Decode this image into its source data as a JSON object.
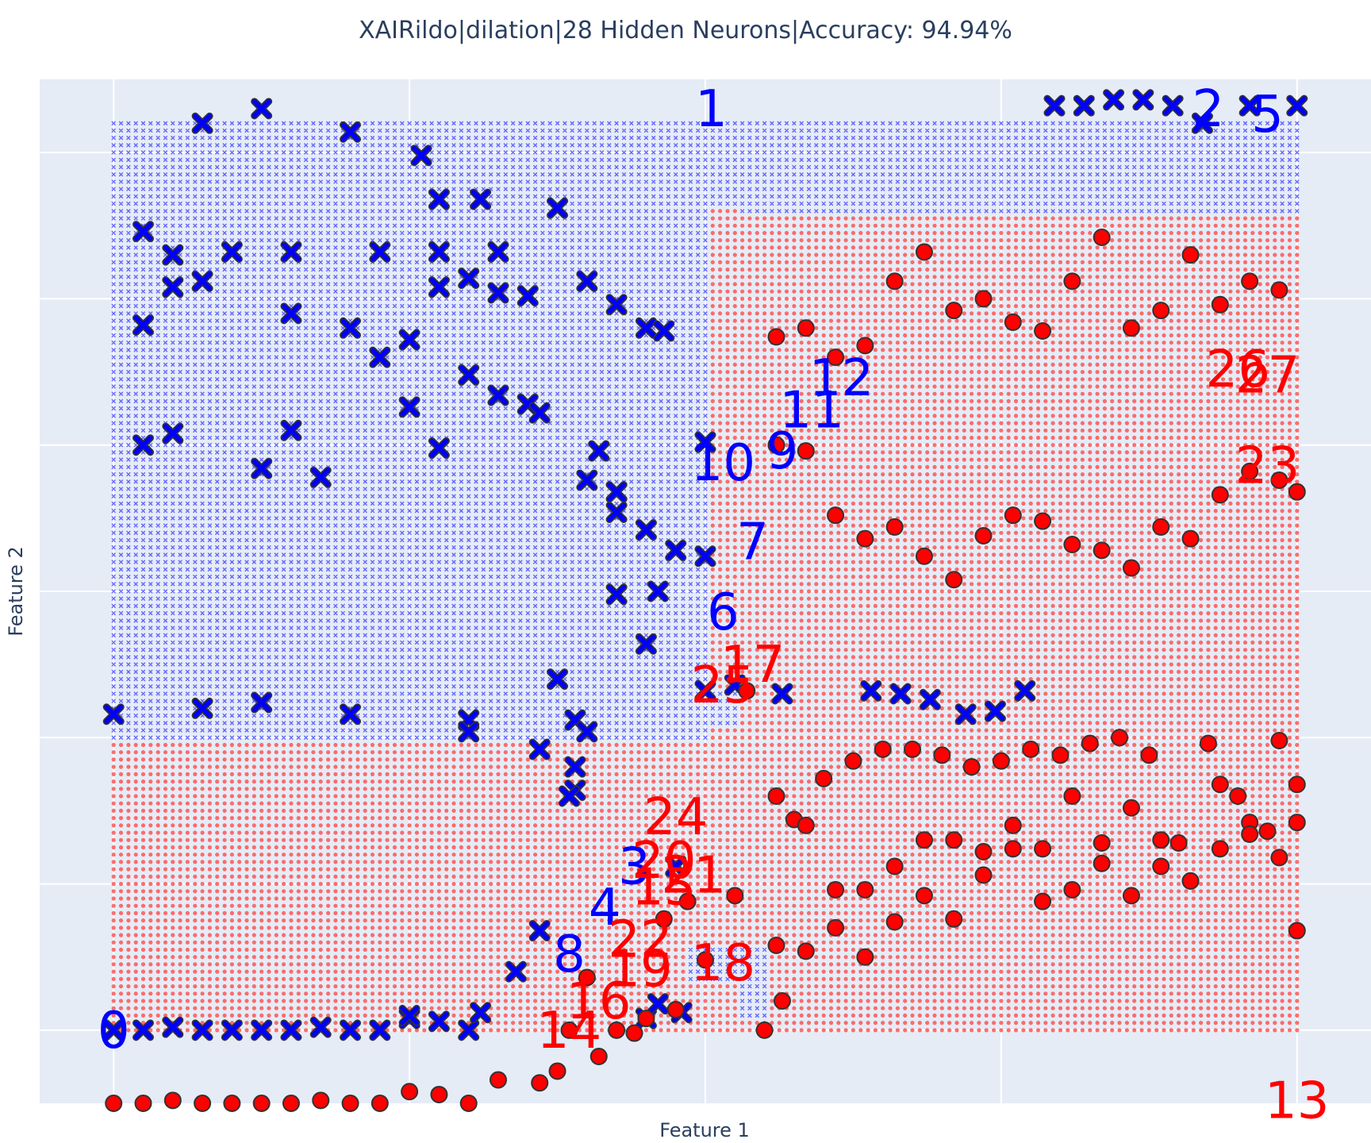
{
  "chart_data": {
    "type": "scatter",
    "title": "XAIRildo|dilation|28 Hidden Neurons|Accuracy: 94.94%",
    "xlabel": "Feature 1",
    "ylabel": "Feature 2",
    "xlim": [
      -0.125,
      2.125
    ],
    "ylim": [
      -0.125,
      1.625
    ],
    "grid": true,
    "legend": "none",
    "colors": {
      "blue": "#0000ff",
      "red": "#ff0000",
      "plot_bg": "#e5ecf6",
      "grid": "#ffffff"
    },
    "regions": {
      "grid_x": [
        0,
        2,
        0.05
      ],
      "grid_y": [
        0,
        1.55,
        0.0125
      ],
      "blue_rects": [
        [
          0,
          1.01,
          0.5,
          1.55
        ],
        [
          1.01,
          2,
          1.395,
          1.55
        ],
        [
          0,
          0.97,
          0.495,
          0.53
        ],
        [
          1.05,
          1.075,
          0.79,
          0.93
        ],
        [
          0.97,
          1.075,
          0.52,
          0.575
        ],
        [
          0.97,
          1.1,
          0.04,
          0.14
        ],
        [
          1.025,
          1.1,
          0.05,
          0.02
        ],
        [
          1.9,
          1.92,
          1.185,
          1.23
        ]
      ],
      "red_rects": [
        [
          1.05,
          2,
          0.5,
          1.22
        ],
        [
          1.07,
          2,
          1.22,
          1.25
        ],
        [
          1.1,
          2,
          1.25,
          1.275
        ],
        [
          1.22,
          2,
          1.275,
          1.33
        ],
        [
          0,
          1.07,
          -0.08,
          0.02
        ],
        [
          0.97,
          1.05,
          0.02,
          0.08
        ],
        [
          0,
          0.97,
          0.49,
          0.41
        ],
        [
          0,
          0.97,
          0.355,
          0.38
        ],
        [
          0,
          0.97,
          0.34,
          0.315
        ],
        [
          0,
          0.97,
          0.215,
          0.22
        ],
        [
          0,
          0.97,
          0.08,
          0.11
        ],
        [
          0.97,
          1.1,
          0.14,
          0.23
        ],
        [
          0.97,
          1.1,
          0.28,
          0.4
        ],
        [
          1.01,
          1.05,
          1.31,
          1.4
        ]
      ]
    },
    "series": [
      {
        "marker": "x",
        "color": "#0000ff",
        "x": [
          0,
          0.05,
          0.1,
          0.15,
          0.2,
          0.25,
          0.3,
          0.35,
          0.4,
          0.45,
          0.5,
          0.55,
          0.6,
          0.5,
          0.55,
          0.6,
          0.65,
          0.7,
          0.8,
          0.85,
          0.9,
          0.93,
          0.9,
          0.92,
          0.96,
          1.0,
          0.6,
          0.75,
          0.78,
          0.25,
          0.15,
          0.4,
          0.52,
          0.62,
          0.55,
          0.75,
          0.05,
          0.1,
          0.15,
          0.3,
          0.4,
          0.45,
          0.5,
          0.6,
          0.7,
          0.85,
          0.05,
          0.1,
          0.2,
          0.3,
          0.45,
          0.55,
          0.65,
          0.95,
          0.05,
          0.1,
          0.25,
          0.3,
          0.35,
          0.5,
          0.55,
          0.65,
          0.72,
          0.82,
          0.85,
          0.8,
          0.85,
          0.9,
          0.95,
          1.0,
          0.0,
          0.15,
          0.25,
          0.4,
          0.6,
          0.72,
          0.78,
          0.9,
          0.92,
          1.0,
          1.05,
          1.13,
          1.28,
          1.33,
          1.38,
          1.44,
          1.49,
          1.54,
          1.59,
          1.64,
          1.69,
          1.74,
          1.79,
          1.84,
          1.92,
          2.0,
          0.85,
          0.8,
          0.78,
          0.77,
          0.72,
          0.68,
          0.62
        ],
        "y": [
          0.0,
          0.0,
          0.005,
          0.0,
          0.0,
          0.0,
          0.0,
          0.005,
          0.0,
          0.0,
          0.02,
          0.015,
          0.0,
          0.025,
          1.27,
          1.285,
          1.26,
          1.255,
          1.28,
          1.24,
          1.2,
          1.195,
          0.02,
          0.045,
          0.03,
          1.005,
          0.53,
          0.6,
          0.53,
          1.575,
          1.55,
          1.535,
          1.495,
          1.42,
          1.42,
          1.405,
          1.365,
          1.325,
          1.28,
          1.225,
          1.2,
          1.15,
          1.18,
          1.12,
          1.07,
          0.885,
          1.205,
          1.27,
          1.33,
          1.33,
          1.33,
          1.33,
          1.33,
          0.28,
          1.0,
          1.02,
          0.96,
          1.025,
          0.945,
          1.065,
          0.995,
          1.085,
          1.055,
          0.99,
          0.92,
          0.94,
          0.92,
          0.855,
          0.82,
          0.81,
          0.54,
          0.55,
          0.56,
          0.54,
          0.51,
          0.48,
          0.41,
          0.66,
          0.75,
          0.58,
          0.59,
          0.575,
          0.58,
          0.575,
          0.565,
          0.54,
          0.545,
          0.58,
          1.58,
          1.58,
          1.59,
          1.59,
          1.58,
          1.55,
          1.58,
          1.58,
          0.745,
          0.51,
          0.45,
          0.4,
          0.17,
          0.1,
          0.03
        ]
      },
      {
        "marker": "circle",
        "color": "#ff0000",
        "x": [
          0,
          0.05,
          0.1,
          0.15,
          0.2,
          0.25,
          0.3,
          0.35,
          0.4,
          0.45,
          0.5,
          0.55,
          0.6,
          0.65,
          0.72,
          0.75,
          0.77,
          0.8,
          0.82,
          0.85,
          0.88,
          0.9,
          0.93,
          0.95,
          0.97,
          1.0,
          1.05,
          1.1,
          1.13,
          1.15,
          1.2,
          1.25,
          1.3,
          1.35,
          1.4,
          1.45,
          1.5,
          1.55,
          1.6,
          1.65,
          1.7,
          1.75,
          1.8,
          1.85,
          1.9,
          1.95,
          2.0
        ],
        "y": [
          -0.125,
          -0.125,
          -0.12,
          -0.125,
          -0.125,
          -0.125,
          -0.125,
          -0.12,
          -0.125,
          -0.125,
          -0.105,
          -0.11,
          -0.125,
          -0.085,
          -0.09,
          -0.07,
          0.0,
          0.09,
          -0.045,
          0.0,
          -0.005,
          0.02,
          0.19,
          0.035,
          0.22,
          0.12,
          0.23,
          0.0,
          0.05,
          0.36,
          0.43,
          0.46,
          0.48,
          0.48,
          0.47,
          0.45,
          0.46,
          0.48,
          0.47,
          0.49,
          0.5,
          0.47,
          0.32,
          0.49,
          0.4,
          0.34,
          0.42
        ]
      },
      {
        "marker": "circle",
        "color": "#ff0000",
        "x": [
          1.12,
          1.17,
          1.22,
          1.27,
          1.32,
          1.37,
          1.42,
          1.47,
          1.52,
          1.57,
          1.62,
          1.67,
          1.72,
          1.77,
          1.82,
          1.87,
          1.92,
          1.97,
          2.0,
          1.07,
          1.12,
          1.17,
          1.22,
          1.27,
          1.32,
          1.37,
          1.42,
          1.47,
          1.52,
          1.57,
          1.62,
          1.67,
          1.72,
          1.77,
          1.82,
          1.87,
          1.92,
          1.97,
          2.0,
          1.12,
          1.17,
          1.22,
          1.27,
          1.32,
          1.37,
          1.42,
          1.47,
          1.52,
          1.57,
          1.62,
          1.67,
          1.72,
          1.77,
          1.82,
          1.87,
          1.92,
          1.97,
          2.0,
          1.12,
          1.17,
          1.22,
          1.27,
          1.32,
          1.37,
          1.42,
          1.47,
          1.52,
          1.57,
          1.62,
          1.67,
          1.72,
          1.77,
          1.82,
          1.87,
          1.92,
          1.97
        ],
        "y": [
          0.145,
          0.135,
          0.175,
          0.125,
          0.185,
          0.23,
          0.325,
          0.305,
          0.31,
          0.22,
          0.24,
          0.285,
          0.23,
          0.325,
          0.255,
          0.31,
          0.355,
          0.295,
          0.355,
          0.58,
          0.4,
          0.35,
          0.24,
          0.24,
          0.28,
          0.325,
          0.19,
          0.265,
          0.35,
          0.31,
          0.4,
          0.32,
          0.38,
          0.28,
          0.255,
          0.42,
          0.335,
          0.495,
          0.17,
          1.0,
          0.99,
          0.88,
          0.84,
          0.86,
          0.81,
          0.77,
          0.845,
          0.88,
          0.87,
          0.83,
          0.82,
          0.79,
          0.86,
          0.84,
          0.915,
          0.955,
          0.94,
          0.92,
          1.185,
          1.2,
          1.15,
          1.17,
          1.28,
          1.33,
          1.23,
          1.25,
          1.21,
          1.195,
          1.28,
          1.355,
          1.2,
          1.23,
          1.325,
          1.24,
          1.28,
          1.265
        ]
      }
    ],
    "neuron_labels": [
      {
        "text": "0",
        "x": 0.0,
        "y": 0.0,
        "color": "#0000ff"
      },
      {
        "text": "1",
        "x": 1.01,
        "y": 1.575,
        "color": "#0000ff"
      },
      {
        "text": "2",
        "x": 1.85,
        "y": 1.575,
        "color": "#0000ff"
      },
      {
        "text": "3",
        "x": 0.88,
        "y": 0.28,
        "color": "#0000ff"
      },
      {
        "text": "4",
        "x": 0.83,
        "y": 0.21,
        "color": "#0000ff"
      },
      {
        "text": "5",
        "x": 1.95,
        "y": 1.565,
        "color": "#0000ff"
      },
      {
        "text": "6",
        "x": 1.03,
        "y": 0.715,
        "color": "#0000ff"
      },
      {
        "text": "7",
        "x": 1.08,
        "y": 0.835,
        "color": "#0000ff"
      },
      {
        "text": "8",
        "x": 0.77,
        "y": 0.13,
        "color": "#0000ff"
      },
      {
        "text": "9",
        "x": 1.13,
        "y": 0.99,
        "color": "#0000ff"
      },
      {
        "text": "10",
        "x": 1.03,
        "y": 0.97,
        "color": "#0000ff"
      },
      {
        "text": "11",
        "x": 1.18,
        "y": 1.06,
        "color": "#0000ff"
      },
      {
        "text": "12",
        "x": 1.23,
        "y": 1.115,
        "color": "#0000ff"
      },
      {
        "text": "13",
        "x": 2.0,
        "y": -0.12,
        "color": "#ff0000"
      },
      {
        "text": "14",
        "x": 0.77,
        "y": 0.0,
        "color": "#ff0000"
      },
      {
        "text": "15",
        "x": 0.93,
        "y": 0.245,
        "color": "#ff0000"
      },
      {
        "text": "16",
        "x": 0.82,
        "y": 0.05,
        "color": "#ff0000"
      },
      {
        "text": "17",
        "x": 1.08,
        "y": 0.625,
        "color": "#ff0000"
      },
      {
        "text": "18",
        "x": 1.03,
        "y": 0.115,
        "color": "#ff0000"
      },
      {
        "text": "19",
        "x": 0.89,
        "y": 0.105,
        "color": "#ff0000"
      },
      {
        "text": "20",
        "x": 0.93,
        "y": 0.29,
        "color": "#ff0000"
      },
      {
        "text": "21",
        "x": 0.98,
        "y": 0.265,
        "color": "#ff0000"
      },
      {
        "text": "22",
        "x": 0.89,
        "y": 0.155,
        "color": "#ff0000"
      },
      {
        "text": "23",
        "x": 1.95,
        "y": 0.965,
        "color": "#ff0000"
      },
      {
        "text": "24",
        "x": 0.95,
        "y": 0.365,
        "color": "#ff0000"
      },
      {
        "text": "25",
        "x": 1.03,
        "y": 0.59,
        "color": "#ff0000"
      },
      {
        "text": "26",
        "x": 1.9,
        "y": 1.13,
        "color": "#ff0000"
      },
      {
        "text": "27",
        "x": 1.95,
        "y": 1.12,
        "color": "#ff0000"
      }
    ]
  }
}
